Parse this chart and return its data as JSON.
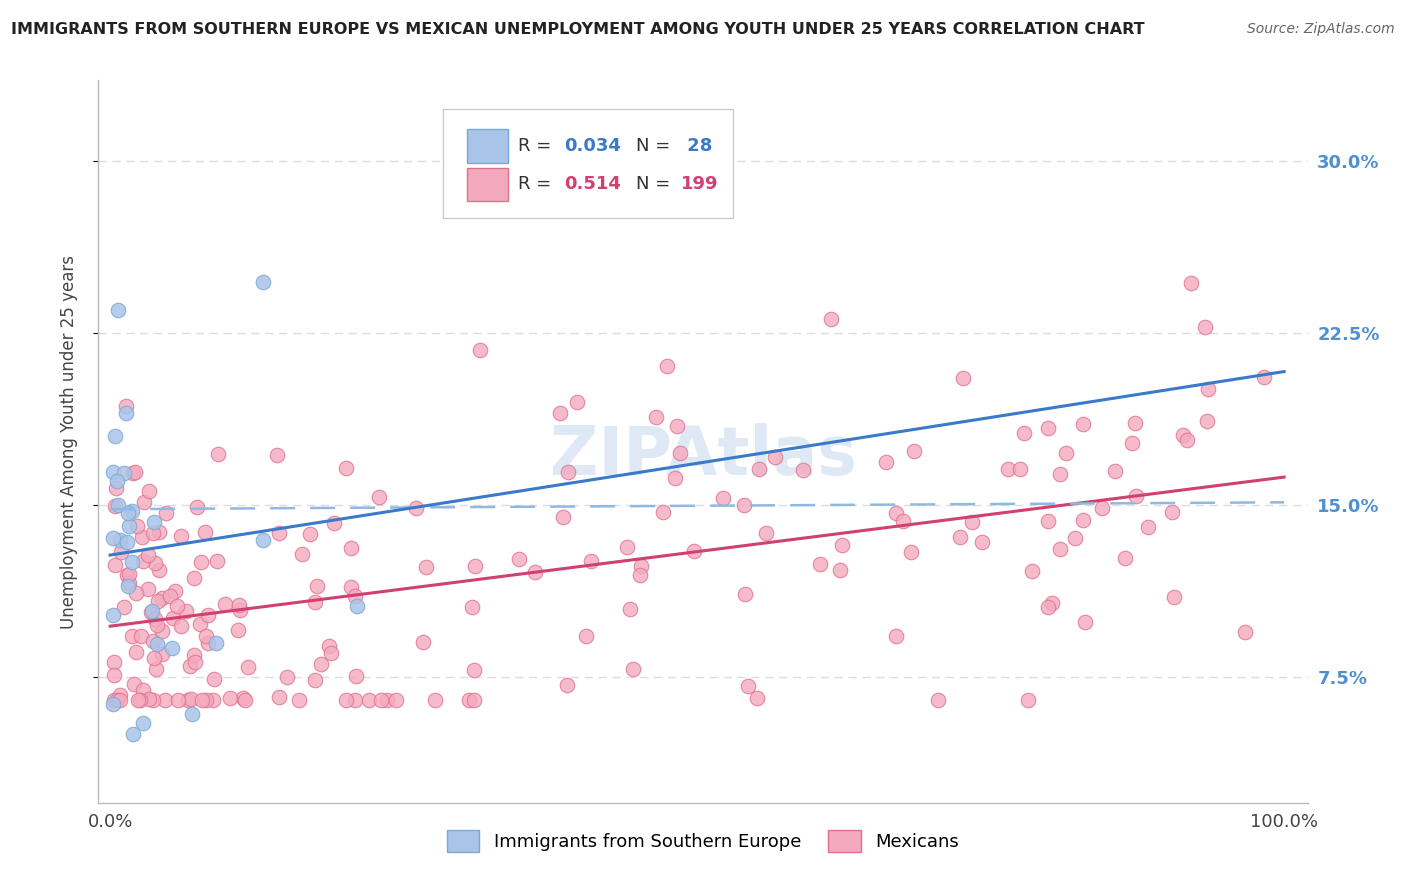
{
  "title": "IMMIGRANTS FROM SOUTHERN EUROPE VS MEXICAN UNEMPLOYMENT AMONG YOUTH UNDER 25 YEARS CORRELATION CHART",
  "source": "Source: ZipAtlas.com",
  "ylabel": "Unemployment Among Youth under 25 years",
  "series1_name": "Immigrants from Southern Europe",
  "series1_color": "#aac4e8",
  "series1_edge": "#7aaad4",
  "series1_R": 0.034,
  "series1_N": 28,
  "series2_name": "Mexicans",
  "series2_color": "#f4aabe",
  "series2_edge": "#e07090",
  "series2_R": 0.514,
  "series2_N": 199,
  "line1_color": "#3a7ac8",
  "line2_color": "#d04070",
  "dash_color": "#90b8e0",
  "watermark": "ZIPAtlas",
  "background_color": "#ffffff",
  "grid_color": "#dddddd",
  "title_color": "#222222",
  "source_color": "#666666",
  "right_tick_color": "#5090d0",
  "xlim": [
    -0.01,
    1.02
  ],
  "ylim": [
    0.02,
    0.335
  ],
  "yticks": [
    0.075,
    0.15,
    0.225,
    0.3
  ],
  "yticklabels": [
    "7.5%",
    "15.0%",
    "22.5%",
    "30.0%"
  ]
}
